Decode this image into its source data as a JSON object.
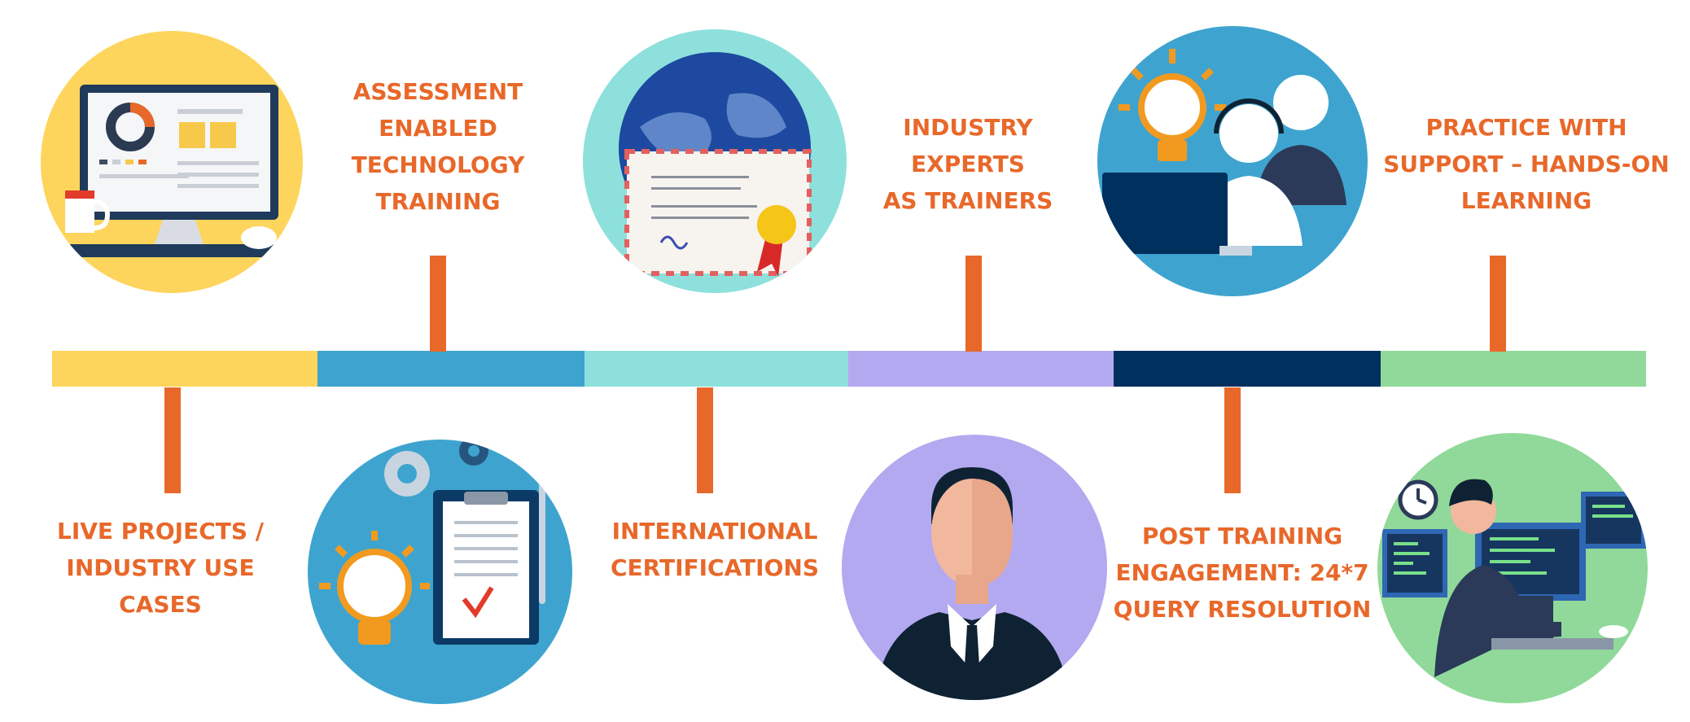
{
  "timeline": {
    "colors": {
      "accent_text": "#e8682a",
      "segment_1": "#fdd55c",
      "segment_2": "#3ea4cf",
      "segment_3": "#8ee0dc",
      "segment_4": "#b3a9f0",
      "segment_5": "#00305e",
      "segment_6": "#90d99a"
    },
    "steps": [
      {
        "id": "live-projects",
        "lines": [
          "LIVE PROJECTS /",
          "INDUSTRY USE",
          "CASES"
        ],
        "icon": "computer-monitor-icon"
      },
      {
        "id": "assessment",
        "lines": [
          "ASSESSMENT",
          "ENABLED",
          "TECHNOLOGY",
          "TRAINING"
        ],
        "icon": "lightbulb-clipboard-icon"
      },
      {
        "id": "certifications",
        "lines": [
          "INTERNATIONAL",
          "CERTIFICATIONS"
        ],
        "icon": "globe-certificate-icon"
      },
      {
        "id": "experts",
        "lines": [
          "INDUSTRY",
          "EXPERTS",
          "AS TRAINERS"
        ],
        "icon": "businessman-icon"
      },
      {
        "id": "post-training",
        "lines": [
          "POST TRAINING",
          "ENGAGEMENT: 24*7",
          "QUERY RESOLUTION"
        ],
        "icon": "support-agents-icon"
      },
      {
        "id": "practice",
        "lines": [
          "PRACTICE WITH",
          "SUPPORT – HANDS-ON",
          "LEARNING"
        ],
        "icon": "developer-at-desk-icon"
      }
    ]
  }
}
